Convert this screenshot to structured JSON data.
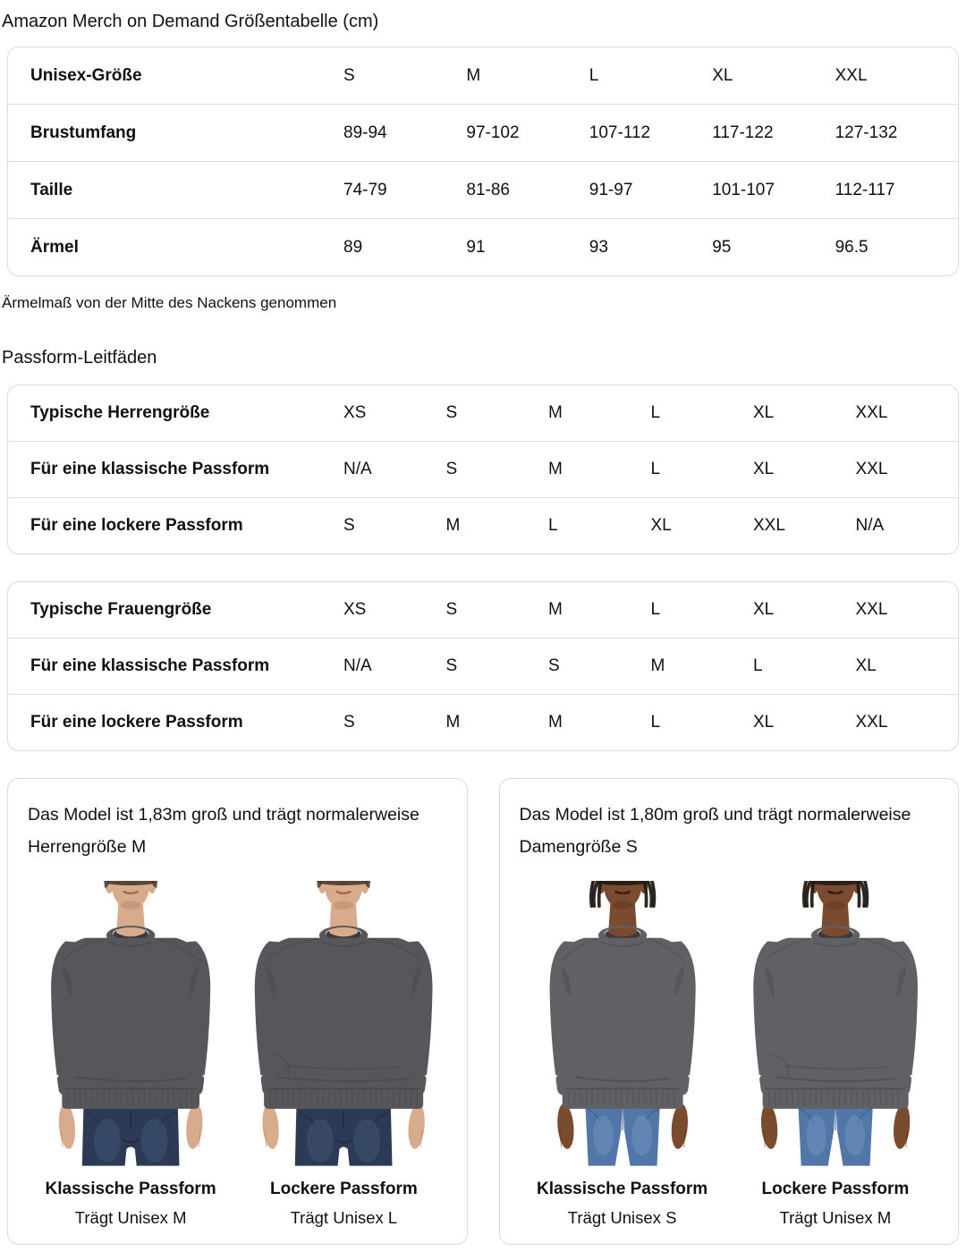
{
  "page": {
    "title": "Amazon Merch on Demand Größentabelle (cm)",
    "fit_guides_heading": "Passform-Leitfäden"
  },
  "size_table": {
    "header": {
      "label": "Unisex-Größe",
      "values": [
        "S",
        "M",
        "L",
        "XL",
        "XXL"
      ]
    },
    "rows": [
      {
        "label": "Brustumfang",
        "values": [
          "89-94",
          "97-102",
          "107-112",
          "117-122",
          "127-132"
        ]
      },
      {
        "label": "Taille",
        "values": [
          "74-79",
          "81-86",
          "91-97",
          "101-107",
          "112-117"
        ]
      },
      {
        "label": "Ärmel",
        "values": [
          "89",
          "91",
          "93",
          "95",
          "96.5"
        ]
      }
    ],
    "footnote": "Ärmelmaß von der Mitte des Nackens genommen"
  },
  "fit_guides": {
    "tables": [
      {
        "rows": [
          {
            "label": "Typische Herrengröße",
            "values": [
              "XS",
              "S",
              "M",
              "L",
              "XL",
              "XXL"
            ]
          },
          {
            "label": "Für eine klassische Passform",
            "values": [
              "N/A",
              "S",
              "M",
              "L",
              "XL",
              "XXL"
            ]
          },
          {
            "label": "Für eine lockere Passform",
            "values": [
              "S",
              "M",
              "L",
              "XL",
              "XXL",
              "N/A"
            ]
          }
        ]
      },
      {
        "rows": [
          {
            "label": "Typische Frauengröße",
            "values": [
              "XS",
              "S",
              "M",
              "L",
              "XL",
              "XXL"
            ]
          },
          {
            "label": "Für eine klassische Passform",
            "values": [
              "N/A",
              "S",
              "S",
              "M",
              "L",
              "XL"
            ]
          },
          {
            "label": "Für eine lockere Passform",
            "values": [
              "S",
              "M",
              "M",
              "L",
              "XL",
              "XXL"
            ]
          }
        ]
      }
    ]
  },
  "model_cards": [
    {
      "description": "Das Model ist 1,83m groß und trägt normalerweise Herrengröße M",
      "photos": [
        {
          "icon": "male-model-classic-fit-photo",
          "fit_label": "Klassische Passform",
          "size_label": "Trägt Unisex M"
        },
        {
          "icon": "male-model-loose-fit-photo",
          "fit_label": "Lockere Passform",
          "size_label": "Trägt Unisex L"
        }
      ]
    },
    {
      "description": "Das Model ist 1,80m groß und trägt normalerweise Damengröße S",
      "photos": [
        {
          "icon": "female-model-classic-fit-photo",
          "fit_label": "Klassische Passform",
          "size_label": "Trägt Unisex S"
        },
        {
          "icon": "female-model-loose-fit-photo",
          "fit_label": "Lockere Passform",
          "size_label": "Trägt Unisex M"
        }
      ]
    }
  ],
  "colors": {
    "text": "#0f1111",
    "table_border": "#d9dadb",
    "sweatshirt_men": "#57565a",
    "sweatshirt_women": "#616065",
    "sweatshirt_shadow": "#38373c",
    "collar_shadow": "#3a3a3f",
    "male_skin": "#d8ab8c",
    "male_skin_dark": "#b07f5e",
    "male_hair": "#4e3d2f",
    "male_lip": "#9c6752",
    "male_jeans": "#2d3a55",
    "male_jeans_light": "#4d6b90",
    "male_jeans_dark": "#1c2636",
    "female_skin": "#7a4b2f",
    "female_skin_dark": "#58331d",
    "female_hair": "#221b16",
    "female_lip": "#3c2019",
    "female_jeans": "#5077a8",
    "female_jeans_light": "#83a4cc",
    "female_jeans_dark": "#35537a"
  }
}
